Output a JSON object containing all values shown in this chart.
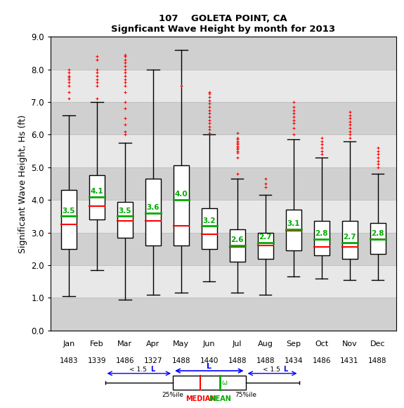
{
  "title1": "107    GOLETA POINT, CA",
  "title2": "Signficant Wave Height by month for 2013",
  "ylabel": "Significant Wave Height, Hs (ft)",
  "months": [
    "Jan",
    "Feb",
    "Mar",
    "Apr",
    "May",
    "Jun",
    "Jul",
    "Aug",
    "Sep",
    "Oct",
    "Nov",
    "Dec"
  ],
  "counts": [
    1483,
    1339,
    1486,
    1327,
    1488,
    1440,
    1488,
    1488,
    1434,
    1486,
    1431,
    1488
  ],
  "ylim": [
    0.0,
    9.0
  ],
  "yticks": [
    0.0,
    1.0,
    2.0,
    3.0,
    4.0,
    5.0,
    6.0,
    7.0,
    8.0,
    9.0
  ],
  "box_stats": [
    {
      "q1": 2.5,
      "median": 3.25,
      "q3": 4.3,
      "whislo": 1.05,
      "whishi": 6.6,
      "mean": 3.5,
      "fliers_high": [
        7.1,
        7.3,
        7.5,
        7.6,
        7.7,
        7.75,
        7.8,
        7.9,
        8.0
      ]
    },
    {
      "q1": 3.4,
      "median": 3.8,
      "q3": 4.75,
      "whislo": 1.85,
      "whishi": 7.0,
      "mean": 4.1,
      "fliers_high": [
        7.1,
        7.5,
        7.6,
        7.7,
        7.8,
        7.9,
        8.0,
        8.3,
        8.4
      ]
    },
    {
      "q1": 2.85,
      "median": 3.35,
      "q3": 3.95,
      "whislo": 0.95,
      "whishi": 5.75,
      "mean": 3.5,
      "fliers_high": [
        6.0,
        6.1,
        6.3,
        6.5,
        6.8,
        7.0,
        7.3,
        7.5,
        7.6,
        7.7,
        7.8,
        7.9,
        8.0,
        8.1,
        8.2,
        8.3,
        8.4,
        8.45
      ]
    },
    {
      "q1": 2.6,
      "median": 3.35,
      "q3": 4.65,
      "whislo": 1.1,
      "whishi": 8.0,
      "mean": 3.6,
      "fliers_high": []
    },
    {
      "q1": 2.6,
      "median": 3.2,
      "q3": 5.05,
      "whislo": 1.15,
      "whishi": 8.6,
      "mean": 4.0,
      "fliers_high": [
        7.5
      ]
    },
    {
      "q1": 2.5,
      "median": 2.95,
      "q3": 3.75,
      "whislo": 1.5,
      "whishi": 6.0,
      "mean": 3.2,
      "fliers_high": [
        6.05,
        6.15,
        6.25,
        6.35,
        6.45,
        6.55,
        6.65,
        6.75,
        6.85,
        6.95,
        7.05,
        7.15,
        7.25,
        7.3
      ]
    },
    {
      "q1": 2.1,
      "median": 2.55,
      "q3": 3.1,
      "whislo": 1.15,
      "whishi": 4.65,
      "mean": 2.6,
      "fliers_high": [
        4.8,
        5.3,
        5.45,
        5.5,
        5.55,
        5.6,
        5.65,
        5.7,
        5.75,
        5.8,
        5.85,
        5.9,
        6.05
      ]
    },
    {
      "q1": 2.2,
      "median": 2.6,
      "q3": 3.0,
      "whislo": 1.1,
      "whishi": 4.15,
      "mean": 2.7,
      "fliers_high": [
        4.4,
        4.5,
        4.65
      ]
    },
    {
      "q1": 2.45,
      "median": 3.05,
      "q3": 3.7,
      "whislo": 1.65,
      "whishi": 5.85,
      "mean": 3.1,
      "fliers_high": [
        6.0,
        6.2,
        6.35,
        6.45,
        6.55,
        6.65,
        6.75,
        6.85,
        7.0
      ]
    },
    {
      "q1": 2.3,
      "median": 2.55,
      "q3": 3.35,
      "whislo": 1.6,
      "whishi": 5.3,
      "mean": 2.8,
      "fliers_high": [
        5.4,
        5.5,
        5.6,
        5.7,
        5.8,
        5.9
      ]
    },
    {
      "q1": 2.2,
      "median": 2.55,
      "q3": 3.35,
      "whislo": 1.55,
      "whishi": 5.8,
      "mean": 2.7,
      "fliers_high": [
        5.9,
        6.0,
        6.1,
        6.2,
        6.3,
        6.4,
        6.5,
        6.6,
        6.7
      ]
    },
    {
      "q1": 2.35,
      "median": 2.8,
      "q3": 3.3,
      "whislo": 1.55,
      "whishi": 4.8,
      "mean": 2.8,
      "fliers_high": [
        5.0,
        5.1,
        5.2,
        5.3,
        5.4,
        5.5,
        5.6
      ]
    }
  ],
  "box_facecolor": "white",
  "box_edgecolor": "black",
  "median_color": "#ff0000",
  "mean_color": "#00aa00",
  "flier_color": "#ff0000",
  "whisker_color": "black",
  "bg_light": "#e8e8e8",
  "bg_dark": "#d0d0d0",
  "grid_color": "#c0c0c0"
}
